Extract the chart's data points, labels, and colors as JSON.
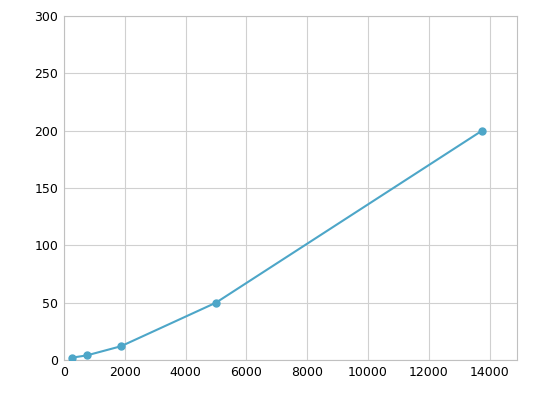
{
  "x": [
    250,
    750,
    1875,
    5000,
    13750
  ],
  "y": [
    2,
    4,
    12,
    50,
    200
  ],
  "line_color": "#4da6c8",
  "marker_color": "#4da6c8",
  "marker_size": 5,
  "line_width": 1.5,
  "xlim": [
    0,
    14900
  ],
  "ylim": [
    0,
    300
  ],
  "xticks": [
    0,
    2000,
    4000,
    6000,
    8000,
    10000,
    12000,
    14000
  ],
  "yticks": [
    0,
    50,
    100,
    150,
    200,
    250,
    300
  ],
  "grid_color": "#d0d0d0",
  "background_color": "#ffffff",
  "spine_color": "#c0c0c0"
}
